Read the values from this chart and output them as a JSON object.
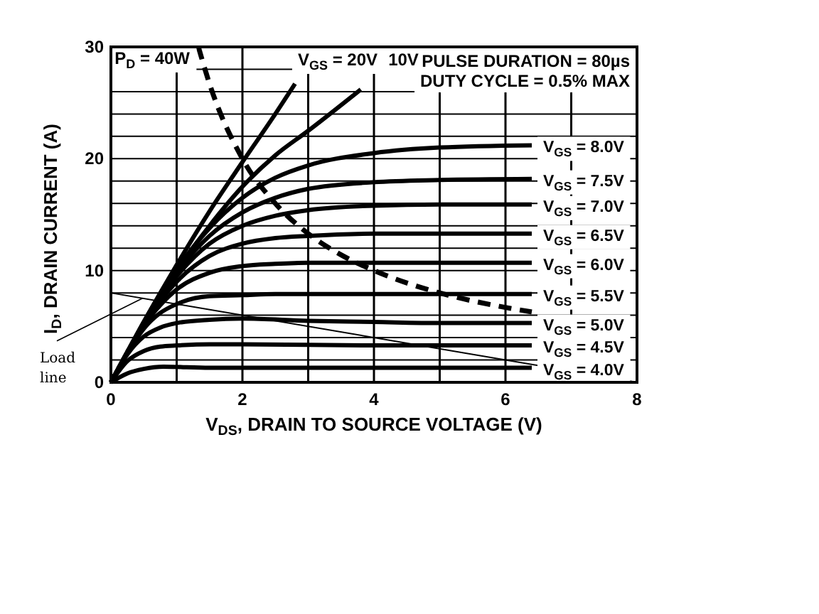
{
  "chart_data": {
    "type": "line",
    "xlabel": "V$_{DS}$, DRAIN TO SOURCE VOLTAGE (V)",
    "ylabel": "I$_{D}$, DRAIN CURRENT (A)",
    "xlim": [
      0,
      8
    ],
    "ylim": [
      0,
      30
    ],
    "xticks": [
      0,
      {
        "value": 1,
        "label": null
      },
      2,
      {
        "value": 3,
        "label": null
      },
      4,
      {
        "value": 5,
        "label": null
      },
      6,
      {
        "value": 7,
        "label": null
      },
      8
    ],
    "yticks": [
      0,
      {
        "value": 2,
        "label": null
      },
      {
        "value": 4,
        "label": null
      },
      {
        "value": 6,
        "label": null
      },
      {
        "value": 8,
        "label": null
      },
      10,
      {
        "value": 12,
        "label": null
      },
      {
        "value": 14,
        "label": null
      },
      {
        "value": 16,
        "label": null
      },
      {
        "value": 18,
        "label": null
      },
      20,
      {
        "value": 22,
        "label": null
      },
      {
        "value": 24,
        "label": null
      },
      {
        "value": 26,
        "label": null
      },
      {
        "value": 28,
        "label": null
      },
      30
    ],
    "grid": true,
    "marker": "none",
    "line_style": "solid",
    "series": [
      {
        "name": "V$_{GS}$ = 20V",
        "color": "#000000",
        "x": [
          0,
          0.5,
          1,
          1.5,
          2,
          2.5,
          2.8
        ],
        "values": [
          0,
          5.4,
          10.5,
          15.3,
          19.7,
          24,
          26.7
        ]
      },
      {
        "name": "10V",
        "color": "#000000",
        "x": [
          0,
          0.5,
          1,
          1.5,
          2,
          2.5,
          3,
          3.8
        ],
        "values": [
          0,
          5.3,
          10,
          14,
          17.5,
          20.3,
          22.5,
          26.2
        ]
      },
      {
        "name": "V$_{GS}$ = 8.0V",
        "color": "#000000",
        "x": [
          0,
          0.25,
          0.5,
          0.75,
          1,
          1.5,
          2,
          2.5,
          3,
          4,
          5,
          6.4
        ],
        "values": [
          0,
          2.7,
          5.4,
          7.9,
          10.1,
          13.8,
          16.5,
          18.3,
          19.4,
          20.5,
          21,
          21.2
        ]
      },
      {
        "name": "V$_{GS}$ = 7.5V",
        "color": "#000000",
        "x": [
          0,
          0.25,
          0.5,
          0.75,
          1,
          1.5,
          2,
          2.5,
          3,
          4,
          5,
          6.4
        ],
        "values": [
          0,
          2.7,
          5.3,
          7.7,
          9.8,
          13.1,
          15.2,
          16.5,
          17.3,
          17.9,
          18.1,
          18.2
        ]
      },
      {
        "name": "V$_{GS}$ = 7.0V",
        "color": "#000000",
        "x": [
          0,
          0.25,
          0.5,
          0.75,
          1,
          1.5,
          2,
          2.5,
          3,
          4,
          5,
          6.4
        ],
        "values": [
          0,
          2.7,
          5.3,
          7.6,
          9.5,
          12.4,
          14,
          14.9,
          15.4,
          15.8,
          15.9,
          15.9
        ]
      },
      {
        "name": "V$_{GS}$ = 6.5V",
        "color": "#000000",
        "x": [
          0,
          0.25,
          0.5,
          0.75,
          1,
          1.5,
          2,
          2.5,
          3,
          4,
          5,
          6.4
        ],
        "values": [
          0,
          2.7,
          5.2,
          7.3,
          9,
          11.3,
          12.4,
          12.9,
          13.1,
          13.3,
          13.3,
          13.3
        ]
      },
      {
        "name": "V$_{GS}$ = 6.0V",
        "color": "#000000",
        "x": [
          0,
          0.25,
          0.5,
          0.75,
          1,
          1.5,
          2,
          2.5,
          3,
          4,
          5,
          6.4
        ],
        "values": [
          0,
          2.7,
          5.1,
          6.9,
          8.3,
          9.8,
          10.4,
          10.6,
          10.7,
          10.7,
          10.7,
          10.7
        ]
      },
      {
        "name": "V$_{GS}$ = 5.5V",
        "color": "#000000",
        "x": [
          0,
          0.25,
          0.5,
          0.75,
          1,
          1.5,
          2,
          2.5,
          3,
          4,
          5,
          6.4
        ],
        "values": [
          0,
          2.6,
          4.8,
          6.2,
          7,
          7.7,
          7.8,
          7.9,
          7.9,
          7.9,
          7.9,
          7.9
        ]
      },
      {
        "name": "V$_{GS}$ = 5.0V",
        "color": "#000000",
        "x": [
          0,
          0.25,
          0.5,
          0.75,
          1,
          1.5,
          2,
          3,
          4,
          5,
          6.4
        ],
        "values": [
          0,
          2.5,
          4.1,
          4.9,
          5.3,
          5.6,
          5.7,
          5.5,
          5.4,
          5.3,
          5.3
        ]
      },
      {
        "name": "V$_{GS}$ = 4.5V",
        "color": "#000000",
        "x": [
          0,
          0.25,
          0.5,
          0.75,
          1,
          1.5,
          2,
          4,
          6.4
        ],
        "values": [
          0,
          1.9,
          2.8,
          3.2,
          3.3,
          3.4,
          3.4,
          3.3,
          3.3
        ]
      },
      {
        "name": "V$_{GS}$ = 4.0V",
        "color": "#000000",
        "x": [
          0,
          0.25,
          0.5,
          0.8,
          1.5,
          3,
          6.4
        ],
        "values": [
          0,
          0.8,
          1.2,
          1.4,
          1.3,
          1.3,
          1.3
        ]
      },
      {
        "name": "P$_{D}$ = 40W",
        "color": "#000000",
        "line_style": "dashed",
        "x": [
          1.33,
          1.5,
          2,
          2.5,
          3,
          3.5,
          4,
          5,
          6,
          6.4
        ],
        "values": [
          30,
          26.7,
          20,
          16,
          13.3,
          11.4,
          10,
          8,
          6.7,
          6.3
        ]
      },
      {
        "name": "Load line",
        "color": "#000000",
        "x": [
          0,
          8
        ],
        "values": [
          8,
          0
        ]
      }
    ],
    "annotations": [
      "PULSE DURATION = 80µs",
      "DUTY CYCLE = 0.5% MAX"
    ]
  }
}
